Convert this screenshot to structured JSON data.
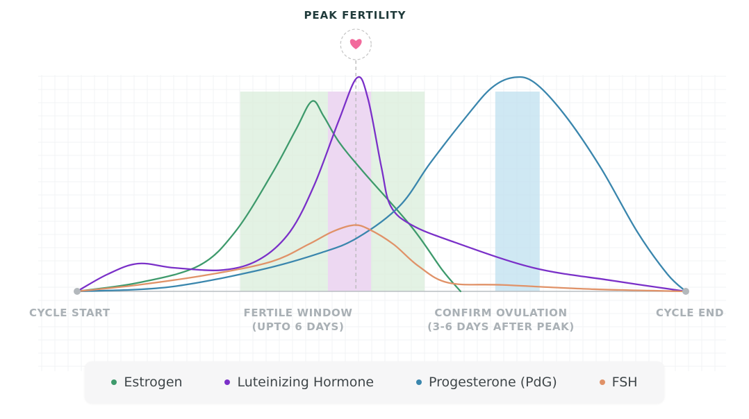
{
  "peak_title": "PEAK FERTILITY",
  "peak_icon": "heart-icon",
  "axis_labels": {
    "start": "CYCLE START",
    "fertile_line1": "FERTILE WINDOW",
    "fertile_line2": "(UPTO 6 DAYS)",
    "confirm_line1": "CONFIRM OVULATION",
    "confirm_line2": "(3-6 DAYS AFTER PEAK)",
    "end": "CYCLE END"
  },
  "legend": [
    {
      "label": "Estrogen",
      "color": "#3e9a6c"
    },
    {
      "label": "Luteinizing Hormone",
      "color": "#7a30c8"
    },
    {
      "label": "Progesterone (PdG)",
      "color": "#3a86ad"
    },
    {
      "label": "FSH",
      "color": "#e09268"
    }
  ],
  "chart_data": {
    "type": "line",
    "title": "PEAK FERTILITY",
    "x_range": [
      0,
      100
    ],
    "y_range": [
      0,
      100
    ],
    "grid": true,
    "legend_position": "bottom",
    "markers": {
      "cycle_start": 0,
      "peak_fertility": 45.8,
      "cycle_end": 100
    },
    "bands": [
      {
        "name": "fertile_window",
        "x": [
          26.8,
          57.1
        ],
        "color": "#d9eedb"
      },
      {
        "name": "peak",
        "x": [
          41.2,
          48.3
        ],
        "color": "#efd4f5"
      },
      {
        "name": "confirm_ovulation",
        "x": [
          68.7,
          76.0
        ],
        "color": "#bfe0ef"
      }
    ],
    "series": [
      {
        "name": "Estrogen",
        "color": "#3e9a6c",
        "points": [
          [
            0,
            0
          ],
          [
            10,
            4
          ],
          [
            20,
            12
          ],
          [
            26,
            28
          ],
          [
            32,
            55
          ],
          [
            36,
            76
          ],
          [
            38.6,
            89
          ],
          [
            40.5,
            82
          ],
          [
            43,
            70
          ],
          [
            47,
            56
          ],
          [
            55,
            30
          ],
          [
            60,
            10
          ],
          [
            63,
            0
          ]
        ]
      },
      {
        "name": "Luteinizing Hormone",
        "color": "#7a30c8",
        "points": [
          [
            0,
            0
          ],
          [
            5,
            8
          ],
          [
            10,
            13
          ],
          [
            16,
            11
          ],
          [
            24,
            10
          ],
          [
            30,
            15
          ],
          [
            35,
            28
          ],
          [
            39,
            50
          ],
          [
            43,
            80
          ],
          [
            46,
            100
          ],
          [
            47.8,
            90
          ],
          [
            50,
            58
          ],
          [
            51.5,
            40
          ],
          [
            55,
            31
          ],
          [
            62,
            23
          ],
          [
            75,
            11
          ],
          [
            88,
            5
          ],
          [
            100,
            0
          ]
        ]
      },
      {
        "name": "Progesterone (PdG)",
        "color": "#3a86ad",
        "points": [
          [
            0,
            0
          ],
          [
            15,
            2
          ],
          [
            30,
            10
          ],
          [
            40,
            18
          ],
          [
            46,
            25
          ],
          [
            53,
            40
          ],
          [
            58,
            60
          ],
          [
            64,
            82
          ],
          [
            68,
            95
          ],
          [
            71.5,
            100
          ],
          [
            75,
            98
          ],
          [
            80,
            83
          ],
          [
            86,
            58
          ],
          [
            92,
            28
          ],
          [
            97,
            8
          ],
          [
            100,
            0
          ]
        ]
      },
      {
        "name": "FSH",
        "color": "#e09268",
        "points": [
          [
            0,
            0
          ],
          [
            10,
            3
          ],
          [
            22,
            8
          ],
          [
            32,
            14
          ],
          [
            38,
            22
          ],
          [
            42,
            28
          ],
          [
            45.5,
            31
          ],
          [
            48,
            29
          ],
          [
            52,
            22
          ],
          [
            56,
            12
          ],
          [
            61,
            4
          ],
          [
            70,
            3
          ],
          [
            85,
            1
          ],
          [
            100,
            0
          ]
        ]
      }
    ]
  }
}
